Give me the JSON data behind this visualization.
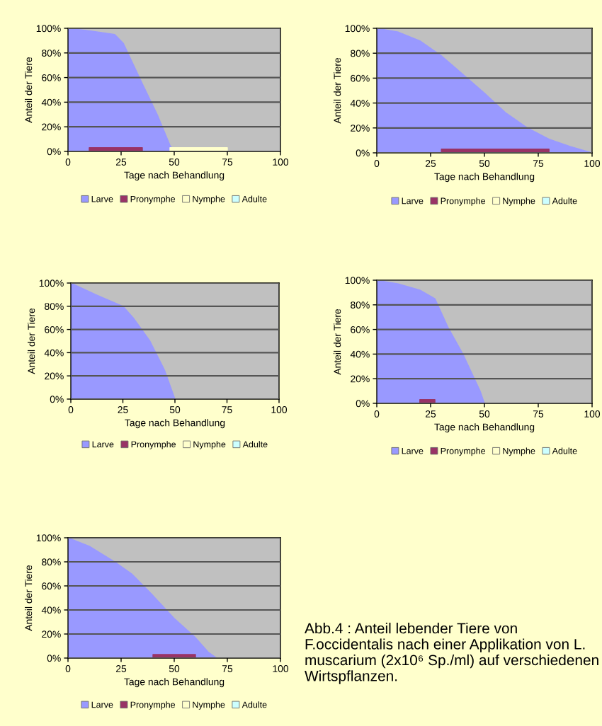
{
  "chart_data": [
    {
      "type": "area",
      "xlabel": "Tage nach Behandlung",
      "ylabel": "Anteil der Tiere",
      "x": [
        0,
        10,
        22,
        26,
        35,
        42,
        48,
        50,
        75,
        100
      ],
      "xlim": [
        0,
        100
      ],
      "xticks": [
        0,
        25,
        50,
        75,
        100
      ],
      "ylim": [
        0,
        100
      ],
      "yticks": [
        {
          "value": 0,
          "label": "0%"
        },
        {
          "value": 20,
          "label": "20%"
        },
        {
          "value": 40,
          "label": "40%"
        },
        {
          "value": 60,
          "label": "60%"
        },
        {
          "value": 80,
          "label": "80%"
        },
        {
          "value": 100,
          "label": "100%"
        }
      ],
      "grid": "y",
      "legend": "bottom",
      "series": [
        {
          "name": "Larve",
          "color": "#9999ff",
          "values": [
            100,
            98,
            95,
            88,
            55,
            30,
            5,
            0,
            0,
            0
          ]
        },
        {
          "name": "Pronymphe",
          "color": "#993366",
          "values": [
            null,
            3,
            3,
            3,
            3,
            null,
            null,
            null,
            null,
            null
          ]
        },
        {
          "name": "Nymphe",
          "color": "#ffffcc",
          "values": [
            null,
            null,
            null,
            null,
            null,
            null,
            3,
            3,
            3,
            null
          ]
        },
        {
          "name": "Adulte",
          "color": "#ccffff",
          "values": [
            null,
            null,
            null,
            null,
            null,
            null,
            null,
            null,
            null,
            null
          ]
        }
      ]
    },
    {
      "type": "area",
      "xlabel": "Tage nach Behandlung",
      "ylabel": "Anteil der Tiere",
      "x": [
        0,
        10,
        20,
        30,
        40,
        50,
        60,
        70,
        80,
        90,
        100
      ],
      "xlim": [
        0,
        100
      ],
      "xticks": [
        0,
        25,
        50,
        75,
        100
      ],
      "ylim": [
        0,
        100
      ],
      "yticks": [
        {
          "value": 0,
          "label": "0%"
        },
        {
          "value": 20,
          "label": "20%"
        },
        {
          "value": 40,
          "label": "40%"
        },
        {
          "value": 60,
          "label": "60%"
        },
        {
          "value": 80,
          "label": "80%"
        },
        {
          "value": 100,
          "label": "100%"
        }
      ],
      "grid": "y",
      "legend": "bottom",
      "series": [
        {
          "name": "Larve",
          "color": "#9999ff",
          "values": [
            100,
            97,
            90,
            78,
            63,
            48,
            32,
            20,
            11,
            5,
            0
          ]
        },
        {
          "name": "Pronymphe",
          "color": "#993366",
          "values": [
            null,
            null,
            null,
            3,
            3,
            3,
            3,
            3,
            3,
            null,
            null
          ]
        },
        {
          "name": "Nymphe",
          "color": "#ffffcc",
          "values": [
            null,
            null,
            null,
            null,
            null,
            null,
            null,
            null,
            null,
            null,
            null
          ]
        },
        {
          "name": "Adulte",
          "color": "#ccffff",
          "values": [
            null,
            null,
            null,
            null,
            null,
            null,
            null,
            null,
            null,
            null,
            null
          ]
        }
      ]
    },
    {
      "type": "area",
      "xlabel": "Tage nach Behandlung",
      "ylabel": "Anteil der Tiere",
      "x": [
        0,
        12,
        25,
        30,
        38,
        45,
        50,
        75,
        100
      ],
      "xlim": [
        0,
        100
      ],
      "xticks": [
        0,
        25,
        50,
        75,
        100
      ],
      "ylim": [
        0,
        100
      ],
      "yticks": [
        {
          "value": 0,
          "label": "0%"
        },
        {
          "value": 20,
          "label": "20%"
        },
        {
          "value": 40,
          "label": "40%"
        },
        {
          "value": 60,
          "label": "60%"
        },
        {
          "value": 80,
          "label": "80%"
        },
        {
          "value": 100,
          "label": "100%"
        }
      ],
      "grid": "y",
      "legend": "bottom",
      "series": [
        {
          "name": "Larve",
          "color": "#9999ff",
          "values": [
            100,
            90,
            80,
            70,
            50,
            25,
            0,
            0,
            0
          ]
        },
        {
          "name": "Pronymphe",
          "color": "#993366",
          "values": [
            null,
            null,
            null,
            null,
            null,
            null,
            null,
            null,
            null
          ]
        },
        {
          "name": "Nymphe",
          "color": "#ffffcc",
          "values": [
            null,
            null,
            null,
            null,
            null,
            null,
            null,
            null,
            null
          ]
        },
        {
          "name": "Adulte",
          "color": "#ccffff",
          "values": [
            null,
            null,
            null,
            null,
            null,
            null,
            null,
            null,
            null
          ]
        }
      ]
    },
    {
      "type": "area",
      "xlabel": "Tage nach Behandlung",
      "ylabel": "Anteil der Tiere",
      "x": [
        0,
        10,
        20,
        27,
        33,
        40,
        48,
        50,
        75,
        100
      ],
      "xlim": [
        0,
        100
      ],
      "xticks": [
        0,
        25,
        50,
        75,
        100
      ],
      "ylim": [
        0,
        100
      ],
      "yticks": [
        {
          "value": 0,
          "label": "0%"
        },
        {
          "value": 20,
          "label": "20%"
        },
        {
          "value": 40,
          "label": "40%"
        },
        {
          "value": 60,
          "label": "60%"
        },
        {
          "value": 80,
          "label": "80%"
        },
        {
          "value": 100,
          "label": "100%"
        }
      ],
      "grid": "y",
      "legend": "bottom",
      "series": [
        {
          "name": "Larve",
          "color": "#9999ff",
          "values": [
            100,
            97,
            92,
            85,
            62,
            40,
            10,
            0,
            0,
            0
          ]
        },
        {
          "name": "Pronymphe",
          "color": "#993366",
          "values": [
            null,
            null,
            3,
            3,
            null,
            null,
            null,
            null,
            null,
            null
          ]
        },
        {
          "name": "Nymphe",
          "color": "#ffffcc",
          "values": [
            null,
            null,
            null,
            null,
            null,
            null,
            null,
            null,
            null,
            null
          ]
        },
        {
          "name": "Adulte",
          "color": "#ccffff",
          "values": [
            null,
            null,
            null,
            null,
            null,
            null,
            null,
            null,
            null,
            null
          ]
        }
      ]
    },
    {
      "type": "area",
      "xlabel": "Tage nach Behandlung",
      "ylabel": "Anteil der Tiere",
      "x": [
        0,
        10,
        22,
        30,
        40,
        50,
        60,
        66,
        70,
        100
      ],
      "xlim": [
        0,
        100
      ],
      "xticks": [
        0,
        25,
        50,
        75,
        100
      ],
      "ylim": [
        0,
        100
      ],
      "yticks": [
        {
          "value": 0,
          "label": "0%"
        },
        {
          "value": 20,
          "label": "20%"
        },
        {
          "value": 40,
          "label": "40%"
        },
        {
          "value": 60,
          "label": "60%"
        },
        {
          "value": 80,
          "label": "80%"
        },
        {
          "value": 100,
          "label": "100%"
        }
      ],
      "grid": "y",
      "legend": "bottom",
      "series": [
        {
          "name": "Larve",
          "color": "#9999ff",
          "values": [
            100,
            93,
            80,
            70,
            52,
            33,
            17,
            5,
            0,
            0
          ]
        },
        {
          "name": "Pronymphe",
          "color": "#993366",
          "values": [
            null,
            null,
            null,
            null,
            3,
            3,
            3,
            null,
            null,
            null
          ]
        },
        {
          "name": "Nymphe",
          "color": "#ffffcc",
          "values": [
            null,
            null,
            null,
            null,
            null,
            null,
            null,
            null,
            null,
            null
          ]
        },
        {
          "name": "Adulte",
          "color": "#ccffff",
          "values": [
            null,
            null,
            null,
            null,
            null,
            null,
            null,
            null,
            null,
            null
          ]
        }
      ],
      "annotations": [
        "Abb.4 : Anteil lebender Tiere von F.occidentalis nach einer Applikation von L. muscarium (2x10⁶ Sp./ml) auf verschiedenen Wirtspflanzen."
      ]
    }
  ]
}
